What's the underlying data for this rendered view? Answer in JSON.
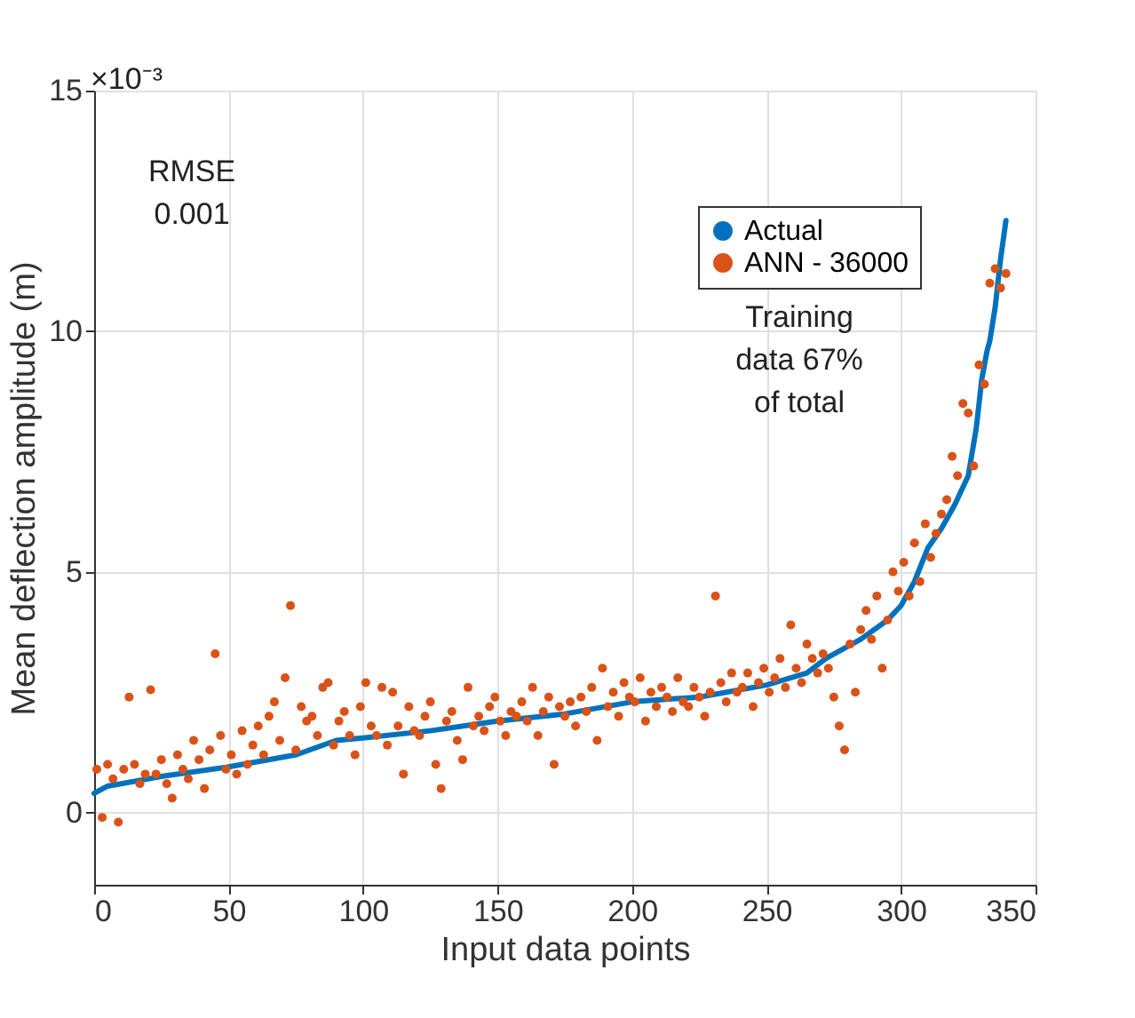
{
  "chart_data": {
    "type": "scatter",
    "xlabel": "Input data points",
    "ylabel": "Mean deflection amplitude (m)",
    "annotations": [
      "×10⁻³",
      "RMSE\n0.001",
      "Training\ndata 67%\nof total"
    ],
    "xlim": [
      0,
      350
    ],
    "xticks": [
      0,
      50,
      100,
      150,
      200,
      250,
      300,
      350
    ],
    "ylim": [
      -1.5,
      15
    ],
    "yticks": [
      0,
      5,
      10,
      15
    ],
    "grid": true,
    "legend": "top right",
    "series": [
      {
        "name": "Actual",
        "type": "line",
        "color": "#0072bd",
        "line_style": "solid",
        "marker": "none",
        "x": [
          0,
          5,
          25,
          50,
          75,
          90,
          100,
          125,
          150,
          175,
          200,
          225,
          250,
          265,
          272,
          285,
          295,
          300,
          305,
          310,
          315,
          320,
          325,
          328,
          330,
          332,
          333,
          335,
          337,
          339
        ],
        "values": [
          0.4,
          0.55,
          0.75,
          0.95,
          1.2,
          1.5,
          1.55,
          1.7,
          1.9,
          2.05,
          2.3,
          2.4,
          2.65,
          2.9,
          3.2,
          3.6,
          4.0,
          4.3,
          4.8,
          5.5,
          5.9,
          6.4,
          7.0,
          8.0,
          9.0,
          9.6,
          9.8,
          10.5,
          11.5,
          12.3
        ]
      },
      {
        "name": "ANN - 36000",
        "color": "#d95319",
        "marker": "circle",
        "x": [
          1,
          3,
          5,
          7,
          9,
          11,
          13,
          15,
          17,
          19,
          21,
          23,
          25,
          27,
          29,
          31,
          33,
          35,
          37,
          39,
          41,
          43,
          45,
          47,
          49,
          51,
          53,
          55,
          57,
          59,
          61,
          63,
          65,
          67,
          69,
          71,
          73,
          75,
          77,
          79,
          81,
          83,
          85,
          87,
          89,
          91,
          93,
          95,
          97,
          99,
          101,
          103,
          105,
          107,
          109,
          111,
          113,
          115,
          117,
          119,
          121,
          123,
          125,
          127,
          129,
          131,
          133,
          135,
          137,
          139,
          141,
          143,
          145,
          147,
          149,
          151,
          153,
          155,
          157,
          159,
          161,
          163,
          165,
          167,
          169,
          171,
          173,
          175,
          177,
          179,
          181,
          183,
          185,
          187,
          189,
          191,
          193,
          195,
          197,
          199,
          201,
          203,
          205,
          207,
          209,
          211,
          213,
          215,
          217,
          219,
          221,
          223,
          225,
          227,
          229,
          231,
          233,
          235,
          237,
          239,
          241,
          243,
          245,
          247,
          249,
          251,
          253,
          255,
          257,
          259,
          261,
          263,
          265,
          267,
          269,
          271,
          273,
          275,
          277,
          279,
          281,
          283,
          285,
          287,
          289,
          291,
          293,
          295,
          297,
          299,
          301,
          303,
          305,
          307,
          309,
          311,
          313,
          315,
          317,
          319,
          321,
          323,
          325,
          327,
          329,
          331,
          333,
          335,
          337,
          339
        ],
        "values": [
          0.9,
          -0.1,
          1.0,
          0.7,
          -0.2,
          0.9,
          2.4,
          1.0,
          0.6,
          0.8,
          2.55,
          0.8,
          1.1,
          0.6,
          0.3,
          1.2,
          0.9,
          0.7,
          1.5,
          1.1,
          0.5,
          1.3,
          3.3,
          1.6,
          0.9,
          1.2,
          0.8,
          1.7,
          1.0,
          1.4,
          1.8,
          1.2,
          2.0,
          2.3,
          1.5,
          2.8,
          4.3,
          1.3,
          2.2,
          1.9,
          2.0,
          1.6,
          2.6,
          2.7,
          1.4,
          1.9,
          2.1,
          1.6,
          1.2,
          2.2,
          2.7,
          1.8,
          1.6,
          2.6,
          1.4,
          2.5,
          1.8,
          0.8,
          2.2,
          1.7,
          1.6,
          2.0,
          2.3,
          1.0,
          0.5,
          1.9,
          2.1,
          1.5,
          1.1,
          2.6,
          1.8,
          2.0,
          1.7,
          2.2,
          2.4,
          1.9,
          1.6,
          2.1,
          2.0,
          2.3,
          1.9,
          2.6,
          1.6,
          2.1,
          2.4,
          1.0,
          2.2,
          2.0,
          2.3,
          1.8,
          2.4,
          2.1,
          2.6,
          1.5,
          3.0,
          2.2,
          2.5,
          2.0,
          2.7,
          2.4,
          2.3,
          2.8,
          1.9,
          2.5,
          2.2,
          2.6,
          2.4,
          2.1,
          2.8,
          2.3,
          2.2,
          2.6,
          2.4,
          2.0,
          2.5,
          4.5,
          2.7,
          2.3,
          2.9,
          2.5,
          2.6,
          2.9,
          2.2,
          2.7,
          3.0,
          2.5,
          2.8,
          3.2,
          2.6,
          3.9,
          3.0,
          2.7,
          3.5,
          3.2,
          2.9,
          3.3,
          3.0,
          2.4,
          1.8,
          1.3,
          3.5,
          2.5,
          3.8,
          4.2,
          3.6,
          4.5,
          3.0,
          4.0,
          5.0,
          4.6,
          5.2,
          4.5,
          5.6,
          4.8,
          6.0,
          5.3,
          5.8,
          6.2,
          6.5,
          7.4,
          7.0,
          8.5,
          8.3,
          7.2,
          9.3,
          8.9,
          11.0,
          11.3,
          10.9,
          11.2
        ]
      }
    ]
  }
}
